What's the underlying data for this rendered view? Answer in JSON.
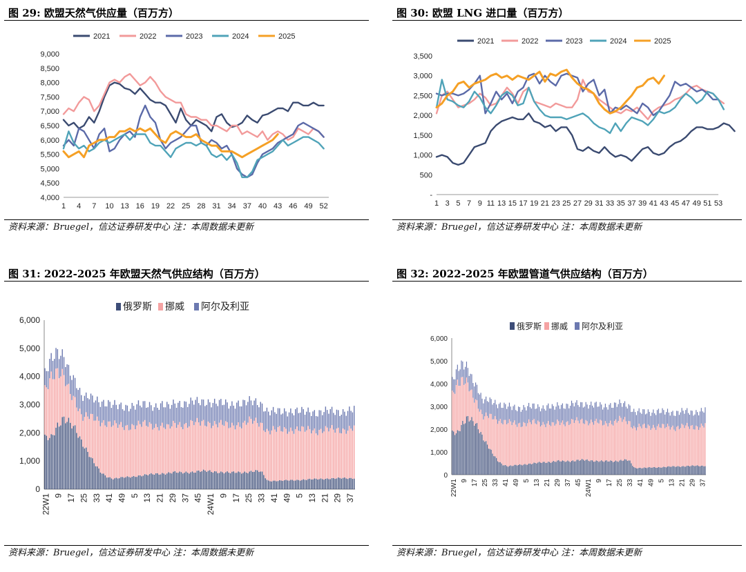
{
  "source_note": "资料来源：Bruegel，信达证券研发中心   注：本周数据未更新",
  "panels": [
    {
      "title": "图 29:  欧盟天然气供应量（百万方）"
    },
    {
      "title": "图 30:  欧盟 LNG 进口量（百万方）"
    },
    {
      "title": "图  31:  2022-2025 年欧盟天然气供应结构（百万方）"
    },
    {
      "title": "图 32:  2022-2025 年欧盟管道气供应结构（百万方）"
    }
  ],
  "colors": {
    "y2021": "#3a4a70",
    "y2022": "#f29a9a",
    "y2023": "#5b6aa8",
    "y2024": "#4fa3b8",
    "y2025": "#f5a025",
    "russia": "#3d4d78",
    "norway": "#f5a3a3",
    "algeria": "#6c79b0"
  },
  "chart_data": [
    {
      "type": "line",
      "title": "欧盟天然气供应量（百万方）",
      "xticks": [
        "1",
        "4",
        "7",
        "10",
        "13",
        "16",
        "19",
        "22",
        "25",
        "28",
        "31",
        "34",
        "37",
        "40",
        "43",
        "46",
        "49",
        "52"
      ],
      "yticks": [
        "4,000",
        "4,500",
        "5,000",
        "5,500",
        "6,000",
        "6,500",
        "7,000",
        "7,500",
        "8,000",
        "8,500",
        "9,000"
      ],
      "xlim": [
        1,
        53
      ],
      "ylim": [
        4000,
        9000
      ],
      "series": [
        {
          "name": "2021",
          "color_key": "y2021",
          "values": [
            6700,
            6500,
            6600,
            6400,
            6500,
            6800,
            6600,
            7000,
            7500,
            7900,
            8000,
            7950,
            7800,
            7750,
            7600,
            7800,
            7600,
            7400,
            7300,
            7300,
            7200,
            6900,
            6600,
            7100,
            6700,
            6500,
            6700,
            6600,
            6500,
            6300,
            6800,
            6900,
            6600,
            6450,
            6500,
            6600,
            6850,
            6700,
            6600,
            6850,
            6900,
            7000,
            7100,
            7100,
            7000,
            7300,
            7300,
            7200,
            7200,
            7300,
            7200,
            7200
          ]
        },
        {
          "name": "2022",
          "color_key": "y2022",
          "values": [
            6900,
            7100,
            7000,
            7300,
            7500,
            7400,
            7000,
            7200,
            7600,
            8000,
            8100,
            8000,
            8200,
            8300,
            8100,
            7900,
            8000,
            8200,
            8000,
            7700,
            7500,
            7400,
            7300,
            7300,
            6900,
            6800,
            6800,
            6700,
            6700,
            6500,
            6500,
            6400,
            6300,
            6500,
            6500,
            6200,
            6300,
            6200,
            6100,
            6300,
            6000,
            6200,
            6300,
            6200,
            6000,
            6100,
            6400,
            6300,
            6200,
            6400,
            6300,
            6100
          ]
        },
        {
          "name": "2023",
          "color_key": "y2023",
          "values": [
            5800,
            6000,
            5800,
            6400,
            6300,
            6000,
            5700,
            6200,
            6400,
            5600,
            5700,
            6000,
            6200,
            6300,
            6100,
            6800,
            7200,
            6800,
            6600,
            6000,
            5700,
            5900,
            6000,
            6100,
            6300,
            6500,
            6500,
            5900,
            5800,
            6000,
            5900,
            5700,
            5800,
            5500,
            5000,
            4800,
            4700,
            4800,
            5200,
            5500,
            5600,
            5700,
            5900,
            6000,
            6100,
            6200,
            6500,
            6600,
            6500,
            6400,
            6300,
            6100
          ]
        },
        {
          "name": "2024",
          "color_key": "y2024",
          "values": [
            5700,
            6300,
            5900,
            5700,
            5800,
            5600,
            5700,
            5900,
            6000,
            5900,
            6000,
            6100,
            6200,
            6000,
            6200,
            6200,
            6200,
            5900,
            5800,
            5800,
            5600,
            5400,
            5700,
            5800,
            5900,
            5900,
            5800,
            5900,
            5800,
            5500,
            5400,
            5500,
            5300,
            5500,
            5200,
            4700,
            4700,
            4900,
            5300,
            5400,
            5500,
            5600,
            5800,
            6000,
            5800,
            5900,
            6000,
            6100,
            6100,
            6000,
            5900,
            5700
          ]
        },
        {
          "name": "2025",
          "color_key": "y2025",
          "values": [
            5600,
            5400,
            5500,
            5600,
            5400,
            5800,
            5900,
            6000,
            6000,
            6100,
            6100,
            6300,
            6300,
            6400,
            6300,
            6400,
            6300,
            6400,
            6200,
            6000,
            5900,
            6200,
            6300,
            6200,
            6100,
            6100,
            6200,
            6000,
            5900,
            5800,
            5800,
            5600,
            5600,
            5600,
            5500,
            5400,
            5500,
            5600,
            5700,
            5800,
            5900,
            6000,
            6200
          ]
        }
      ]
    },
    {
      "type": "line",
      "title": "欧盟 LNG 进口量（百万方）",
      "xticks": [
        "1",
        "3",
        "5",
        "7",
        "9",
        "11",
        "13",
        "15",
        "17",
        "19",
        "21",
        "23",
        "25",
        "27",
        "29",
        "31",
        "33",
        "35",
        "37",
        "39",
        "41",
        "43",
        "45",
        "47",
        "49",
        "51",
        "53"
      ],
      "yticks": [
        "-",
        "500",
        "1,000",
        "1,500",
        "2,000",
        "2,500",
        "3,000",
        "3,500"
      ],
      "xlim": [
        1,
        53
      ],
      "ylim": [
        0,
        3500
      ],
      "series": [
        {
          "name": "2021",
          "color_key": "y2021",
          "values": [
            950,
            1000,
            950,
            800,
            750,
            800,
            1000,
            1200,
            1250,
            1300,
            1600,
            1750,
            1850,
            1900,
            1950,
            1900,
            1900,
            2050,
            1850,
            1800,
            1700,
            1750,
            1600,
            1700,
            1700,
            1500,
            1150,
            1100,
            1200,
            1100,
            1050,
            1200,
            1050,
            950,
            1000,
            950,
            850,
            1000,
            1150,
            1200,
            1050,
            1000,
            1050,
            1200,
            1300,
            1350,
            1450,
            1600,
            1700,
            1700,
            1650,
            1650,
            1700,
            1800,
            1750,
            1600
          ]
        },
        {
          "name": "2022",
          "color_key": "y2022",
          "values": [
            2050,
            2500,
            2600,
            2400,
            2200,
            2250,
            2300,
            2400,
            2550,
            2450,
            2250,
            2300,
            2500,
            2700,
            2550,
            2300,
            2600,
            2700,
            2350,
            2300,
            2250,
            2200,
            2300,
            2250,
            2200,
            2200,
            2400,
            2900,
            2600,
            2550,
            2400,
            2300,
            2200,
            2100,
            2050,
            2150,
            2100,
            2200,
            2050,
            1900,
            2100,
            2200,
            2250,
            2300,
            2400,
            2450,
            2550,
            2700,
            2750,
            2650,
            2600,
            2550,
            2400,
            2300
          ]
        },
        {
          "name": "2023",
          "color_key": "y2023",
          "values": [
            2550,
            2500,
            2550,
            2550,
            2500,
            2550,
            2650,
            2800,
            3000,
            2050,
            2300,
            2600,
            2400,
            2550,
            2300,
            2600,
            2700,
            3000,
            3050,
            2800,
            3000,
            2850,
            2750,
            3000,
            3050,
            3000,
            2950,
            2600,
            2800,
            2900,
            2500,
            2650,
            2050,
            2200,
            2150,
            2250,
            2150,
            2050,
            2300,
            2200,
            2000,
            2100,
            2300,
            2500,
            2850,
            2750,
            2800,
            2700,
            2600,
            2650,
            2550,
            2400,
            2400
          ]
        },
        {
          "name": "2024",
          "color_key": "y2024",
          "values": [
            2200,
            2900,
            2400,
            2350,
            2250,
            2200,
            2350,
            2600,
            2450,
            2200,
            2050,
            2250,
            2500,
            2600,
            2500,
            2250,
            2300,
            2700,
            2350,
            2150,
            2000,
            1950,
            1950,
            1950,
            1900,
            1950,
            2000,
            2050,
            1950,
            1800,
            1700,
            1650,
            1550,
            1800,
            1600,
            1800,
            1950,
            1900,
            1850,
            1750,
            1900,
            2100,
            2050,
            2100,
            2200,
            2400,
            2550,
            2450,
            2300,
            2400,
            2600,
            2550,
            2400,
            2150
          ]
        },
        {
          "name": "2025",
          "color_key": "y2025",
          "values": [
            2200,
            2300,
            2500,
            2600,
            2800,
            2850,
            2700,
            2800,
            2850,
            2900,
            3000,
            3050,
            2950,
            3000,
            2900,
            3000,
            2950,
            2900,
            3000,
            3100,
            2850,
            3050,
            3000,
            3100,
            3150,
            2950,
            2800,
            2700,
            2650,
            2550,
            2300,
            2150,
            2050,
            2100,
            2200,
            2350,
            2500,
            2700,
            2750,
            2900,
            2950,
            2800,
            3000
          ]
        }
      ]
    },
    {
      "type": "bar",
      "stacked": true,
      "title": "2022-2025 年欧盟天然气供应结构（百万方）",
      "categories_note": "weekly 2022W1 to 2025W40",
      "xticks": [
        "22W1",
        "9",
        "17",
        "25",
        "33",
        "41",
        "49",
        "5",
        "13",
        "21",
        "29",
        "37",
        "45",
        "24W1",
        "9",
        "17",
        "25",
        "33",
        "41",
        "49",
        "5",
        "13",
        "21",
        "29",
        "37"
      ],
      "yticks": [
        "0",
        "1,000",
        "2,000",
        "3,000",
        "4,000",
        "5,000",
        "6,000"
      ],
      "ylim": [
        0,
        6000
      ],
      "series": [
        {
          "name": "俄罗斯",
          "color_key": "russia",
          "anchors": [
            1800,
            1850,
            2300,
            2500,
            2300,
            2100,
            1700,
            1300,
            900,
            600,
            450,
            380,
            400,
            420,
            440,
            480,
            500,
            520,
            540,
            560,
            580,
            600,
            580,
            600,
            620,
            640,
            640,
            630,
            620,
            600,
            580,
            600,
            600,
            620,
            640,
            620,
            300,
            300,
            300,
            310,
            320,
            330,
            340,
            350,
            360,
            370,
            380,
            380,
            390,
            390,
            400
          ]
        },
        {
          "name": "挪威",
          "color_key": "norway",
          "anchors": [
            1700,
            2200,
            1900,
            1500,
            1100,
            1000,
            900,
            1300,
            1600,
            1800,
            1900,
            1900,
            1850,
            1800,
            1800,
            1800,
            1800,
            1750,
            1700,
            1700,
            1600,
            1700,
            1700,
            1700,
            1750,
            1700,
            1700,
            1700,
            1700,
            1700,
            1650,
            1700,
            1700,
            1800,
            1750,
            1700,
            1750,
            1800,
            1800,
            1800,
            1800,
            1800,
            1750,
            1750,
            1700,
            1750,
            1750,
            1700,
            1700,
            1750,
            1800
          ]
        },
        {
          "name": "阿尔及利亚",
          "color_key": "algeria",
          "anchors": [
            600,
            650,
            700,
            700,
            700,
            700,
            700,
            700,
            700,
            700,
            700,
            700,
            700,
            700,
            700,
            700,
            700,
            700,
            700,
            750,
            750,
            750,
            750,
            750,
            750,
            750,
            750,
            750,
            750,
            750,
            750,
            750,
            750,
            700,
            700,
            700,
            700,
            650,
            650,
            650,
            650,
            650,
            650,
            650,
            650,
            650,
            650,
            650,
            650,
            650,
            650
          ]
        }
      ]
    },
    {
      "type": "bar",
      "stacked": true,
      "title": "2022-2025 年欧盟管道气供应结构（百万方）",
      "categories_note": "weekly 2022W1 to 2025W40",
      "xticks": [
        "22W1",
        "9",
        "17",
        "25",
        "33",
        "41",
        "49",
        "5",
        "13",
        "21",
        "29",
        "37",
        "45",
        "24W1",
        "9",
        "17",
        "25",
        "33",
        "41",
        "49",
        "5",
        "13",
        "21",
        "29",
        "37"
      ],
      "yticks": [
        "0",
        "1,000",
        "2,000",
        "3,000",
        "4,000",
        "5,000",
        "6,000"
      ],
      "ylim": [
        0,
        6000
      ],
      "series": [
        {
          "name": "俄罗斯",
          "color_key": "russia",
          "anchors": [
            1800,
            1850,
            2300,
            2500,
            2300,
            2100,
            1700,
            1300,
            900,
            600,
            450,
            380,
            400,
            420,
            440,
            480,
            500,
            520,
            540,
            560,
            580,
            600,
            580,
            600,
            620,
            640,
            640,
            630,
            620,
            600,
            580,
            600,
            600,
            620,
            640,
            620,
            300,
            300,
            300,
            310,
            320,
            330,
            340,
            350,
            360,
            370,
            380,
            380,
            390,
            390,
            400
          ]
        },
        {
          "name": "挪威",
          "color_key": "norway",
          "anchors": [
            1700,
            2200,
            1900,
            1500,
            1100,
            1000,
            900,
            1300,
            1600,
            1800,
            1900,
            1900,
            1850,
            1800,
            1800,
            1800,
            1800,
            1750,
            1700,
            1700,
            1600,
            1700,
            1700,
            1700,
            1750,
            1700,
            1700,
            1700,
            1700,
            1700,
            1650,
            1700,
            1700,
            1800,
            1750,
            1700,
            1750,
            1800,
            1800,
            1800,
            1800,
            1800,
            1750,
            1750,
            1700,
            1750,
            1750,
            1700,
            1700,
            1750,
            1800
          ]
        },
        {
          "name": "阿尔及利亚",
          "color_key": "algeria",
          "anchors": [
            600,
            650,
            700,
            700,
            700,
            700,
            700,
            700,
            700,
            700,
            700,
            700,
            700,
            700,
            700,
            700,
            700,
            700,
            700,
            750,
            750,
            750,
            750,
            750,
            750,
            750,
            750,
            750,
            750,
            750,
            750,
            750,
            750,
            700,
            700,
            700,
            700,
            650,
            650,
            650,
            650,
            650,
            650,
            650,
            650,
            650,
            650,
            650,
            650,
            650,
            650
          ]
        }
      ]
    }
  ]
}
